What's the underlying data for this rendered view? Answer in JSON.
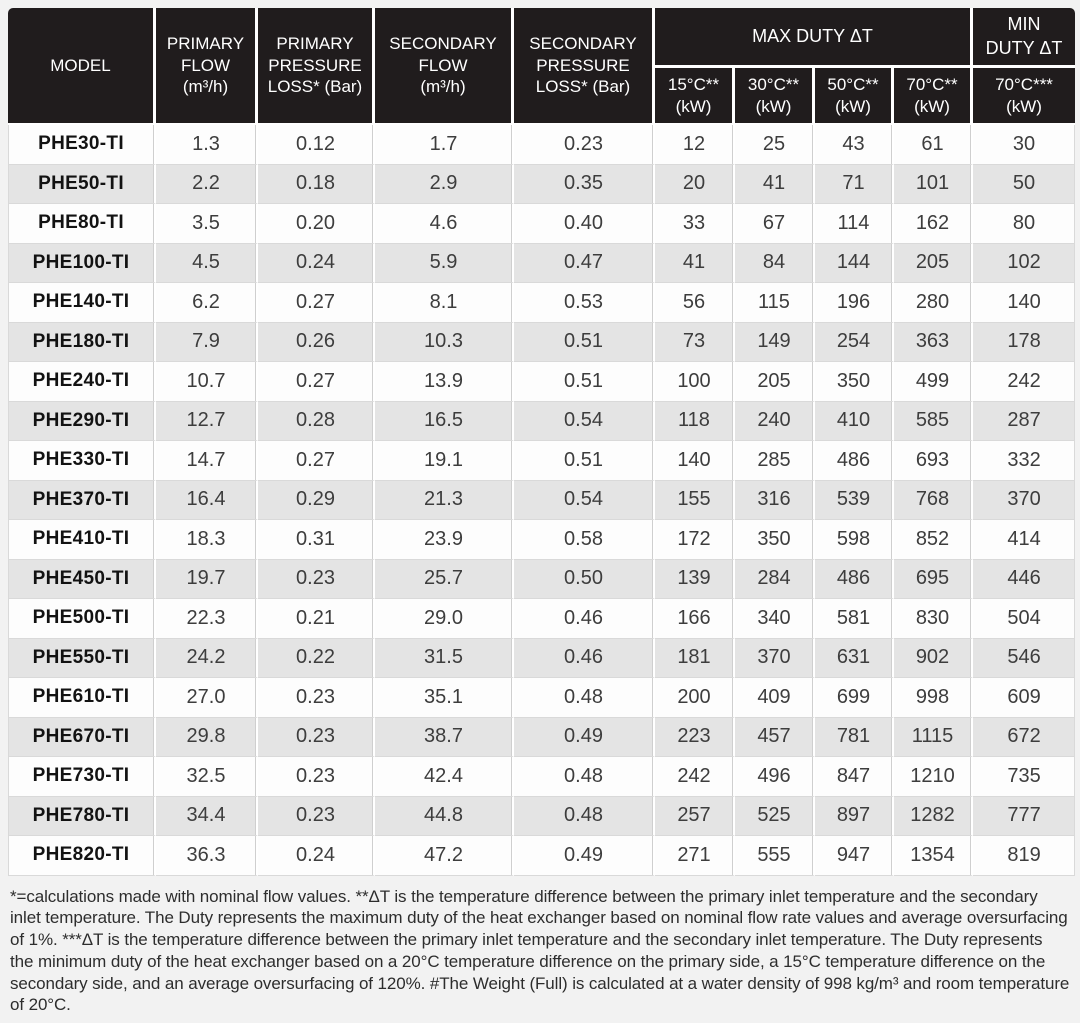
{
  "colors": {
    "header_bg": "#201c1d",
    "header_text": "#ffffff",
    "row_bg": "#fdfdfd",
    "row_alt_bg": "#e4e4e4",
    "body_text": "#3d3d3d",
    "model_text": "#121212",
    "page_bg": "#f2f2f2",
    "grid_line": "#cfcfcf"
  },
  "table": {
    "columns": {
      "model": "MODEL",
      "primary_flow": "PRIMARY\nFLOW\n(m³/h)",
      "primary_pressure_loss": "PRIMARY\nPRESSURE\nLOSS* (Bar)",
      "secondary_flow": "SECONDARY\nFLOW\n(m³/h)",
      "secondary_pressure_loss": "SECONDARY\nPRESSURE\nLOSS* (Bar)",
      "max_duty_group": "MAX DUTY ΔT",
      "min_duty_group": "MIN\nDUTY ΔT",
      "max_duty_subs": [
        "15°C**\n(kW)",
        "30°C**\n(kW)",
        "50°C**\n(kW)",
        "70°C**\n(kW)"
      ],
      "min_duty_sub": "70°C***\n(kW)"
    },
    "rows": [
      [
        "PHE30-TI",
        "1.3",
        "0.12",
        "1.7",
        "0.23",
        "12",
        "25",
        "43",
        "61",
        "30"
      ],
      [
        "PHE50-TI",
        "2.2",
        "0.18",
        "2.9",
        "0.35",
        "20",
        "41",
        "71",
        "101",
        "50"
      ],
      [
        "PHE80-TI",
        "3.5",
        "0.20",
        "4.6",
        "0.40",
        "33",
        "67",
        "114",
        "162",
        "80"
      ],
      [
        "PHE100-TI",
        "4.5",
        "0.24",
        "5.9",
        "0.47",
        "41",
        "84",
        "144",
        "205",
        "102"
      ],
      [
        "PHE140-TI",
        "6.2",
        "0.27",
        "8.1",
        "0.53",
        "56",
        "115",
        "196",
        "280",
        "140"
      ],
      [
        "PHE180-TI",
        "7.9",
        "0.26",
        "10.3",
        "0.51",
        "73",
        "149",
        "254",
        "363",
        "178"
      ],
      [
        "PHE240-TI",
        "10.7",
        "0.27",
        "13.9",
        "0.51",
        "100",
        "205",
        "350",
        "499",
        "242"
      ],
      [
        "PHE290-TI",
        "12.7",
        "0.28",
        "16.5",
        "0.54",
        "118",
        "240",
        "410",
        "585",
        "287"
      ],
      [
        "PHE330-TI",
        "14.7",
        "0.27",
        "19.1",
        "0.51",
        "140",
        "285",
        "486",
        "693",
        "332"
      ],
      [
        "PHE370-TI",
        "16.4",
        "0.29",
        "21.3",
        "0.54",
        "155",
        "316",
        "539",
        "768",
        "370"
      ],
      [
        "PHE410-TI",
        "18.3",
        "0.31",
        "23.9",
        "0.58",
        "172",
        "350",
        "598",
        "852",
        "414"
      ],
      [
        "PHE450-TI",
        "19.7",
        "0.23",
        "25.7",
        "0.50",
        "139",
        "284",
        "486",
        "695",
        "446"
      ],
      [
        "PHE500-TI",
        "22.3",
        "0.21",
        "29.0",
        "0.46",
        "166",
        "340",
        "581",
        "830",
        "504"
      ],
      [
        "PHE550-TI",
        "24.2",
        "0.22",
        "31.5",
        "0.46",
        "181",
        "370",
        "631",
        "902",
        "546"
      ],
      [
        "PHE610-TI",
        "27.0",
        "0.23",
        "35.1",
        "0.48",
        "200",
        "409",
        "699",
        "998",
        "609"
      ],
      [
        "PHE670-TI",
        "29.8",
        "0.23",
        "38.7",
        "0.49",
        "223",
        "457",
        "781",
        "1115",
        "672"
      ],
      [
        "PHE730-TI",
        "32.5",
        "0.23",
        "42.4",
        "0.48",
        "242",
        "496",
        "847",
        "1210",
        "735"
      ],
      [
        "PHE780-TI",
        "34.4",
        "0.23",
        "44.8",
        "0.48",
        "257",
        "525",
        "897",
        "1282",
        "777"
      ],
      [
        "PHE820-TI",
        "36.3",
        "0.24",
        "47.2",
        "0.49",
        "271",
        "555",
        "947",
        "1354",
        "819"
      ]
    ]
  },
  "footnote": "*=calculations made with nominal flow values. **ΔT is the temperature difference between the primary inlet temperature and the secondary inlet temperature. The Duty represents the maximum duty of the heat exchanger based on nominal flow rate values and average oversurfacing of 1%. ***ΔT is the temperature difference between the primary inlet temperature and the secondary inlet temperature. The Duty represents the minimum duty of the heat exchanger based on a 20°C temperature difference on the primary side, a 15°C temperature difference on the secondary side, and an average oversurfacing of 120%. #The Weight (Full) is calculated at a water density of 998 kg/m³ and room temperature of 20°C."
}
